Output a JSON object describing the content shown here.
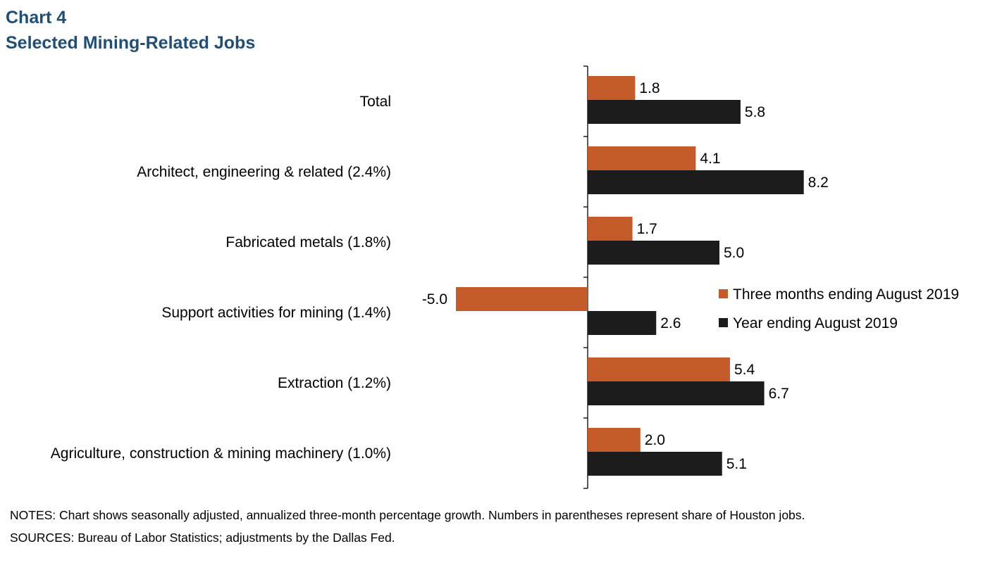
{
  "title": "Chart 4",
  "subtitle": "Selected Mining-Related Jobs",
  "notes": "NOTES: Chart shows seasonally adjusted, annualized  three-month percentage growth. Numbers in parentheses represent share of Houston jobs.",
  "sources": "SOURCES: Bureau of Labor Statistics; adjustments by the Dallas Fed.",
  "chart_data": {
    "type": "bar",
    "orientation": "horizontal",
    "categories": [
      "Total",
      "Architect, engineering & related (2.4%)",
      "Fabricated metals (1.8%)",
      "Support activities for mining (1.4%)",
      "Extraction (1.2%)",
      "Agriculture, construction & mining machinery (1.0%)"
    ],
    "series": [
      {
        "name": "Three months ending August 2019",
        "color": "#c55a2b",
        "values": [
          1.8,
          4.1,
          1.7,
          -5.0,
          5.4,
          2.0
        ]
      },
      {
        "name": "Year ending August 2019",
        "color": "#1c1c1c",
        "values": [
          5.8,
          8.2,
          5.0,
          2.6,
          6.7,
          5.1
        ]
      }
    ],
    "legend_position": "right",
    "data_labels": true,
    "grid": false
  }
}
